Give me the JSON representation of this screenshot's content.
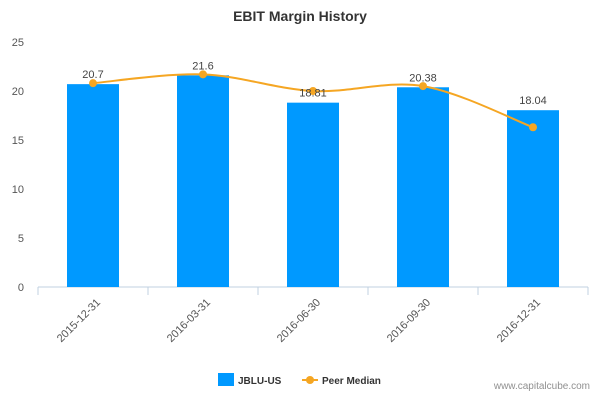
{
  "chart_data": {
    "type": "bar",
    "title": "EBIT Margin History",
    "categories": [
      "2015-12-31",
      "2016-03-31",
      "2016-06-30",
      "2016-09-30",
      "2016-12-31"
    ],
    "ylim": [
      0,
      25
    ],
    "yticks": [
      0,
      5,
      10,
      15,
      20,
      25
    ],
    "series": [
      {
        "name": "JBLU-US",
        "type": "bar",
        "color": "#0099ff",
        "values": [
          20.7,
          21.6,
          18.81,
          20.38,
          18.04
        ],
        "labels": [
          "20.7",
          "21.6",
          "18.81",
          "20.38",
          "18.04"
        ]
      },
      {
        "name": "Peer Median",
        "type": "line",
        "color": "#f5a623",
        "values": [
          20.8,
          21.7,
          20.0,
          20.5,
          16.3
        ]
      }
    ],
    "legend_position": "bottom-center",
    "grid": false
  },
  "watermark": "www.capitalcube.com"
}
